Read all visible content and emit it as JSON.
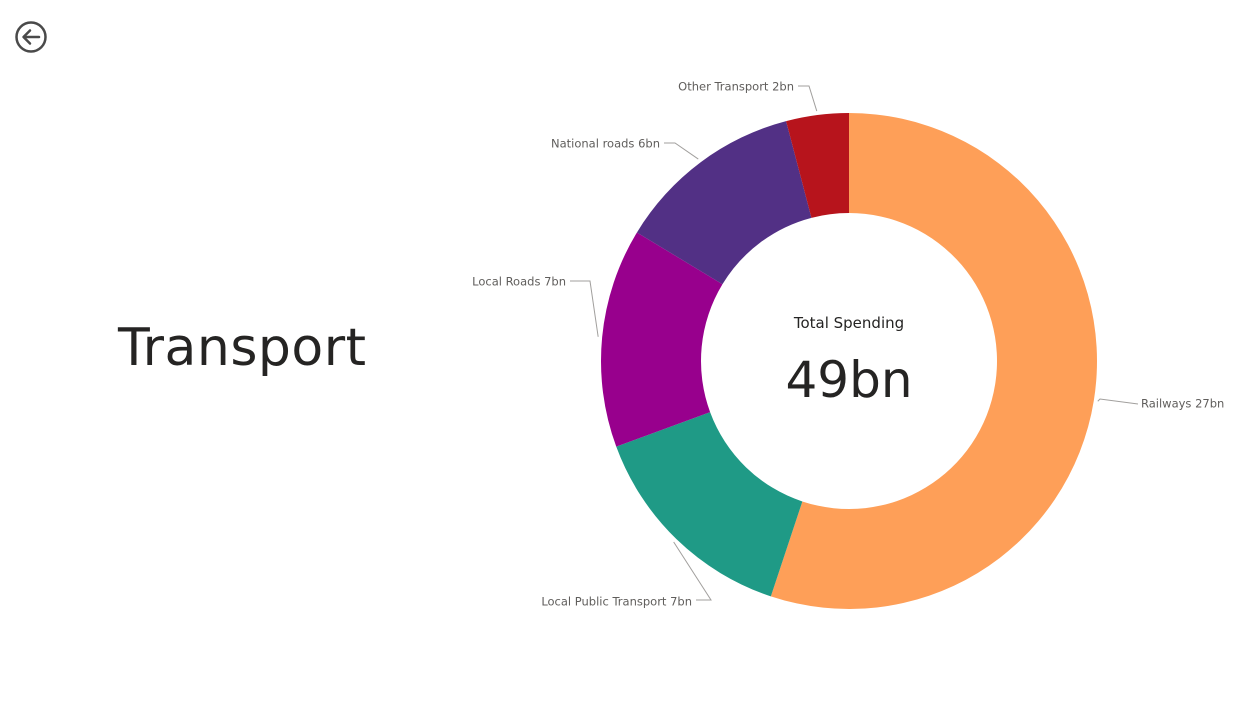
{
  "page": {
    "title": "Transport"
  },
  "icons": {
    "back": "back-arrow-circle-icon"
  },
  "colors": {
    "text": "#252423",
    "label": "#605e5c",
    "leader": "#a19f9d"
  },
  "chart_data": {
    "type": "pie",
    "variant": "donut",
    "center_label": "Total Spending",
    "center_value": "49bn",
    "slices": [
      {
        "name": "Railways",
        "value": 27,
        "label": "Railways 27bn",
        "color": "#FE9F58"
      },
      {
        "name": "Local Public Transport",
        "value": 7,
        "label": "Local Public Transport 7bn",
        "color": "#1F9A86"
      },
      {
        "name": "Local Roads",
        "value": 7,
        "label": "Local Roads 7bn",
        "color": "#98008D"
      },
      {
        "name": "National roads",
        "value": 6,
        "label": "National roads 6bn",
        "color": "#523085"
      },
      {
        "name": "Other Transport",
        "value": 2,
        "label": "Other Transport 2bn",
        "color": "#B7141C"
      }
    ]
  }
}
